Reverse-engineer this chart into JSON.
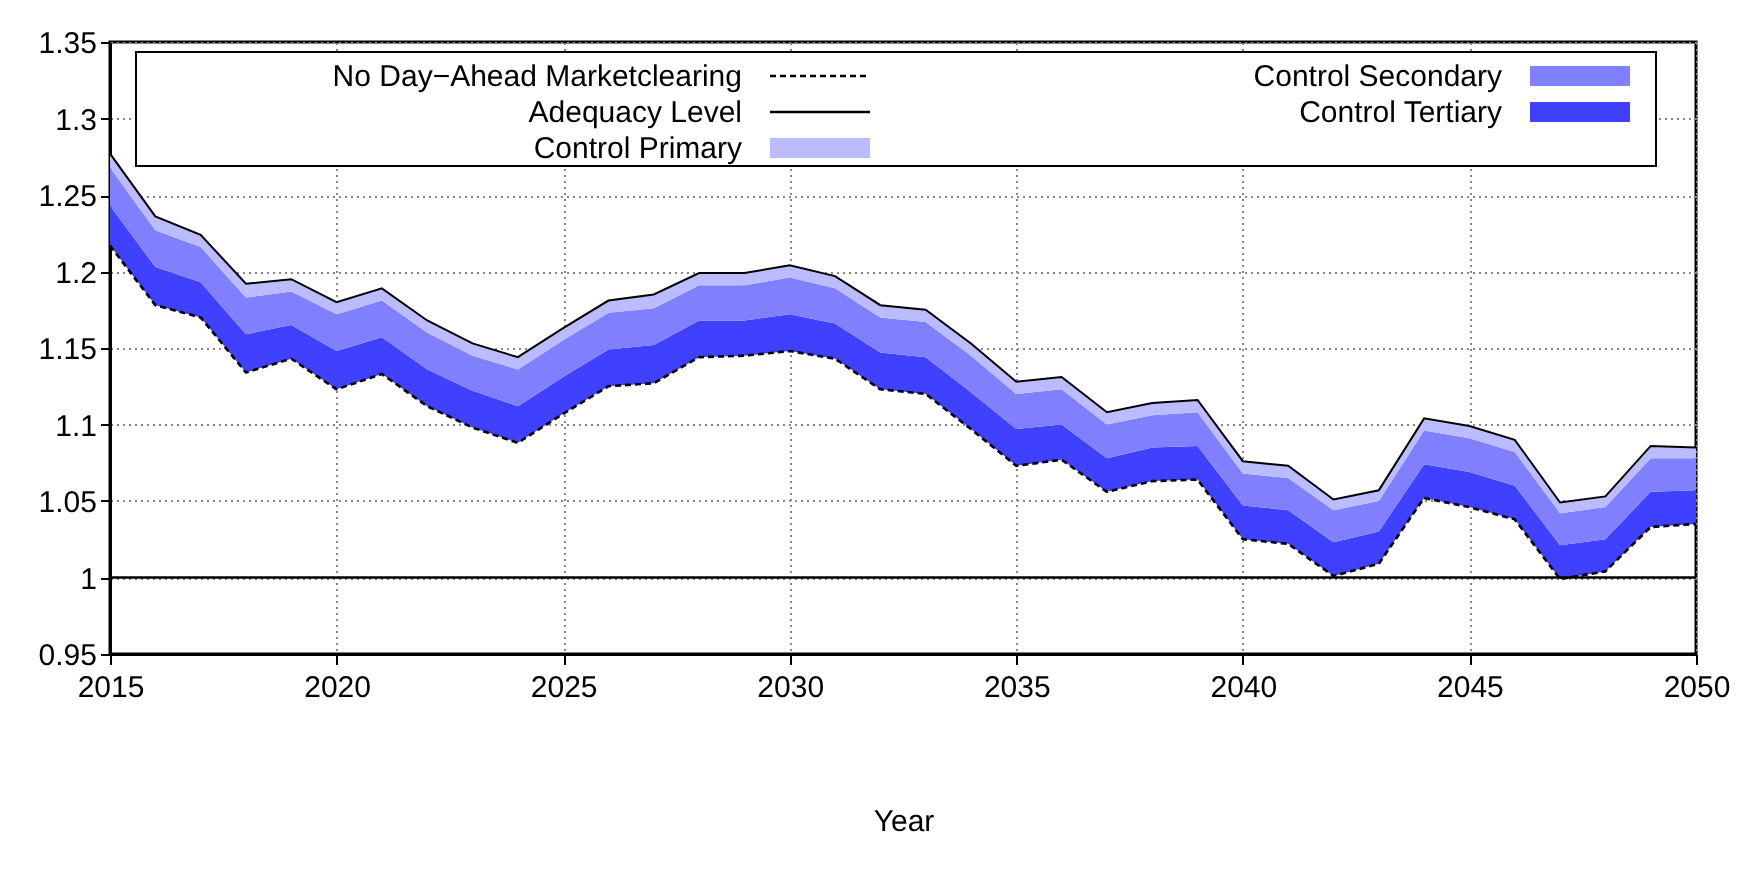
{
  "chart_data": {
    "type": "area",
    "xlabel": "Year",
    "legend": "top",
    "grid": true,
    "x": [
      2015,
      2016,
      2017,
      2018,
      2019,
      2020,
      2021,
      2022,
      2023,
      2024,
      2025,
      2026,
      2027,
      2028,
      2029,
      2030,
      2031,
      2032,
      2033,
      2034,
      2035,
      2036,
      2037,
      2038,
      2039,
      2040,
      2041,
      2042,
      2043,
      2044,
      2045,
      2046,
      2047,
      2048,
      2049,
      2050
    ],
    "xlim": [
      2015,
      2050
    ],
    "xticks": [
      2015,
      2020,
      2025,
      2030,
      2035,
      2040,
      2045,
      2050
    ],
    "ylim": [
      0.95,
      1.35
    ],
    "yticks": [
      0.95,
      1,
      1.05,
      1.1,
      1.15,
      1.2,
      1.25,
      1.3,
      1.35
    ],
    "series": [
      {
        "name": "No Day−Ahead Marketclearing",
        "type": "line",
        "line_style": "dashed",
        "color": "#000000",
        "values": [
          1.217,
          1.178,
          1.17,
          1.134,
          1.143,
          1.123,
          1.133,
          1.112,
          1.098,
          1.088,
          1.107,
          1.125,
          1.127,
          1.144,
          1.145,
          1.148,
          1.143,
          1.123,
          1.12,
          1.097,
          1.073,
          1.077,
          1.056,
          1.063,
          1.064,
          1.025,
          1.022,
          1.001,
          1.009,
          1.052,
          1.046,
          1.038,
          0.999,
          1.004,
          1.033,
          1.035
        ]
      },
      {
        "name": "Control Tertiary",
        "color": "#4040ff",
        "values": [
          1.243,
          1.203,
          1.193,
          1.159,
          1.165,
          1.148,
          1.157,
          1.136,
          1.122,
          1.112,
          1.131,
          1.149,
          1.152,
          1.168,
          1.168,
          1.172,
          1.166,
          1.147,
          1.144,
          1.121,
          1.097,
          1.1,
          1.078,
          1.085,
          1.086,
          1.047,
          1.044,
          1.023,
          1.03,
          1.074,
          1.069,
          1.06,
          1.021,
          1.025,
          1.056,
          1.057
        ]
      },
      {
        "name": "Control Secondary",
        "color": "#8080ff",
        "values": [
          1.268,
          1.227,
          1.216,
          1.183,
          1.187,
          1.172,
          1.181,
          1.16,
          1.145,
          1.136,
          1.155,
          1.173,
          1.176,
          1.191,
          1.191,
          1.196,
          1.189,
          1.17,
          1.167,
          1.145,
          1.12,
          1.123,
          1.1,
          1.106,
          1.108,
          1.068,
          1.065,
          1.044,
          1.05,
          1.096,
          1.091,
          1.082,
          1.042,
          1.046,
          1.078,
          1.078
        ]
      },
      {
        "name": "Control Primary",
        "color": "#bbbbff",
        "values": [
          1.277,
          1.236,
          1.224,
          1.192,
          1.195,
          1.18,
          1.189,
          1.168,
          1.153,
          1.144,
          1.163,
          1.181,
          1.185,
          1.199,
          1.199,
          1.204,
          1.197,
          1.178,
          1.175,
          1.153,
          1.128,
          1.131,
          1.108,
          1.114,
          1.116,
          1.076,
          1.073,
          1.051,
          1.057,
          1.104,
          1.099,
          1.09,
          1.049,
          1.053,
          1.086,
          1.085
        ]
      },
      {
        "name": "Adequacy Level",
        "type": "line",
        "line_style": "solid",
        "color": "#000000",
        "values": [
          1,
          1,
          1,
          1,
          1,
          1,
          1,
          1,
          1,
          1,
          1,
          1,
          1,
          1,
          1,
          1,
          1,
          1,
          1,
          1,
          1,
          1,
          1,
          1,
          1,
          1,
          1,
          1,
          1,
          1,
          1,
          1,
          1,
          1,
          1,
          1
        ]
      }
    ]
  }
}
